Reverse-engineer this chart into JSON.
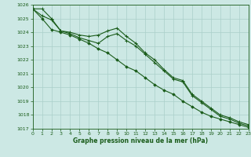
{
  "title": "Graphe pression niveau de la mer (hPa)",
  "background_color": "#cce8e4",
  "grid_color": "#aacfca",
  "line_color": "#1a5c1a",
  "xlim": [
    0,
    23
  ],
  "ylim": [
    1017,
    1026
  ],
  "yticks": [
    1017,
    1018,
    1019,
    1020,
    1021,
    1022,
    1023,
    1024,
    1025,
    1026
  ],
  "xticks": [
    0,
    1,
    2,
    3,
    4,
    5,
    6,
    7,
    8,
    9,
    10,
    11,
    12,
    13,
    14,
    15,
    16,
    17,
    18,
    19,
    20,
    21,
    22,
    23
  ],
  "series1": [
    1025.7,
    1025.7,
    1025.0,
    1024.1,
    1024.0,
    1023.8,
    1023.7,
    1023.8,
    1024.1,
    1024.3,
    1023.7,
    1023.2,
    1022.5,
    1022.0,
    1021.3,
    1020.7,
    1020.5,
    1019.5,
    1019.0,
    1018.5,
    1018.0,
    1017.8,
    1017.5,
    1017.3
  ],
  "series2": [
    1025.7,
    1025.2,
    1024.9,
    1024.1,
    1023.9,
    1023.6,
    1023.4,
    1023.2,
    1023.7,
    1023.9,
    1023.4,
    1023.0,
    1022.4,
    1021.8,
    1021.2,
    1020.6,
    1020.4,
    1019.4,
    1018.9,
    1018.4,
    1017.9,
    1017.7,
    1017.4,
    1017.2
  ],
  "series3": [
    1025.7,
    1025.0,
    1024.2,
    1024.0,
    1023.8,
    1023.5,
    1023.2,
    1022.8,
    1022.5,
    1022.0,
    1021.5,
    1021.2,
    1020.7,
    1020.2,
    1019.8,
    1019.5,
    1019.0,
    1018.6,
    1018.2,
    1017.9,
    1017.7,
    1017.5,
    1017.3,
    1017.1
  ],
  "tick_fontsize": 4.5,
  "label_fontsize": 5.5
}
